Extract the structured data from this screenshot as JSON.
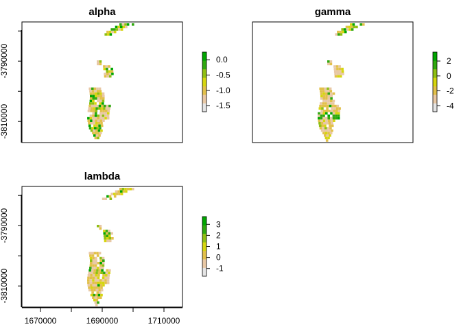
{
  "chart_data": [
    {
      "type": "heatmap",
      "title": "alpha",
      "xlabel": "",
      "ylabel": "",
      "xlim": [
        1664000,
        1716000
      ],
      "ylim": [
        -3817000,
        -3777000
      ],
      "x_ticks": [
        1670000,
        1690000,
        1710000
      ],
      "x_tick_labels": [
        "1670000",
        "1690000",
        "1710000"
      ],
      "x_tick_labels_visible": false,
      "y_ticks": [
        -3790000,
        -3810000
      ],
      "y_tick_labels": [
        "-3790000",
        "-3810000"
      ],
      "legend": {
        "range": [
          -1.7,
          0.25
        ],
        "ticks": [
          0.0,
          -0.5,
          -1.0,
          -1.5
        ],
        "tick_labels": [
          "0.0",
          "-0.5",
          "-1.0",
          "-1.5"
        ],
        "colors": [
          "#e5e5e5",
          "#e8c8a5",
          "#e2c04a",
          "#d6d60e",
          "#8fbf12",
          "#2fa80e",
          "#00a600"
        ]
      }
    },
    {
      "type": "heatmap",
      "title": "gamma",
      "xlabel": "",
      "ylabel": "",
      "xlim": [
        1664000,
        1716000
      ],
      "ylim": [
        -3817000,
        -3777000
      ],
      "x_ticks": [
        1670000,
        1690000,
        1710000
      ],
      "x_tick_labels": [
        "1670000",
        "1690000",
        "1710000"
      ],
      "x_tick_labels_visible": false,
      "y_ticks": [
        -3790000,
        -3810000
      ],
      "y_tick_labels": [
        "-3790000",
        "-3810000"
      ],
      "y_tick_labels_visible": false,
      "legend": {
        "range": [
          -4.8,
          3.2
        ],
        "ticks": [
          2,
          0,
          -2,
          -4
        ],
        "tick_labels": [
          "2",
          "0",
          "-2",
          "-4"
        ],
        "colors": [
          "#e5e5e5",
          "#e8c8a5",
          "#e2c04a",
          "#d6d60e",
          "#8fbf12",
          "#2fa80e",
          "#00a600"
        ]
      }
    },
    {
      "type": "heatmap",
      "title": "lambda",
      "xlabel": "",
      "ylabel": "",
      "xlim": [
        1664000,
        1716000
      ],
      "ylim": [
        -3817000,
        -3777000
      ],
      "x_ticks": [
        1670000,
        1690000,
        1710000
      ],
      "x_tick_labels": [
        "1670000",
        "1690000",
        "1710000"
      ],
      "y_ticks": [
        -3790000,
        -3810000
      ],
      "y_tick_labels": [
        "-3790000",
        "-3810000"
      ],
      "legend": {
        "range": [
          -1.7,
          3.7
        ],
        "ticks": [
          3,
          2,
          1,
          0,
          -1
        ],
        "tick_labels": [
          "3",
          "2",
          "1",
          "0",
          "-1"
        ],
        "colors": [
          "#e5e5e5",
          "#e8c8a5",
          "#e2c04a",
          "#d6d60e",
          "#8fbf12",
          "#2fa80e",
          "#00a600"
        ]
      }
    }
  ]
}
